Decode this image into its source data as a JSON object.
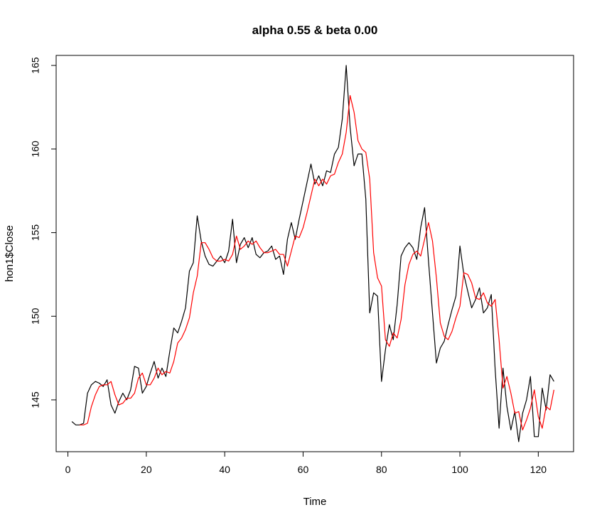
{
  "chart_data": {
    "type": "line",
    "title": "alpha 0.55 & beta 0.00",
    "xlabel": "Time",
    "ylabel": "hon1$Close",
    "xlim": [
      -3,
      129
    ],
    "ylim": [
      141.9,
      165.6
    ],
    "xticks": [
      0,
      20,
      40,
      60,
      80,
      100,
      120
    ],
    "yticks": [
      145,
      150,
      155,
      160,
      165
    ],
    "grid": false,
    "series": [
      {
        "color": "#000000",
        "x": [
          1,
          2,
          3,
          4,
          5,
          6,
          7,
          8,
          9,
          10,
          11,
          12,
          13,
          14,
          15,
          16,
          17,
          18,
          19,
          20,
          21,
          22,
          23,
          24,
          25,
          26,
          27,
          28,
          29,
          30,
          31,
          32,
          33,
          34,
          35,
          36,
          37,
          38,
          39,
          40,
          41,
          42,
          43,
          44,
          45,
          46,
          47,
          48,
          49,
          50,
          51,
          52,
          53,
          54,
          55,
          56,
          57,
          58,
          59,
          60,
          61,
          62,
          63,
          64,
          65,
          66,
          67,
          68,
          69,
          70,
          71,
          72,
          73,
          74,
          75,
          76,
          77,
          78,
          79,
          80,
          81,
          82,
          83,
          84,
          85,
          86,
          87,
          88,
          89,
          90,
          91,
          92,
          93,
          94,
          95,
          96,
          97,
          98,
          99,
          100,
          101,
          102,
          103,
          104,
          105,
          106,
          107,
          108,
          109,
          110,
          111,
          112,
          113,
          114,
          115,
          116,
          117,
          118,
          119,
          120,
          121,
          122,
          123,
          124
        ],
        "values": [
          143.7,
          143.5,
          143.5,
          143.6,
          145.4,
          145.9,
          146.1,
          146.0,
          145.8,
          146.2,
          144.7,
          144.2,
          144.9,
          145.4,
          145.0,
          145.6,
          147.0,
          146.9,
          145.4,
          145.8,
          146.6,
          147.3,
          146.3,
          146.9,
          146.4,
          147.9,
          149.3,
          149.0,
          149.7,
          150.5,
          152.7,
          153.2,
          156.0,
          154.5,
          153.6,
          153.1,
          153.0,
          153.3,
          153.6,
          153.2,
          153.9,
          155.8,
          153.2,
          154.3,
          154.7,
          154.1,
          154.7,
          153.7,
          153.5,
          153.8,
          153.9,
          154.2,
          153.4,
          153.6,
          152.5,
          154.6,
          155.6,
          154.6,
          155.8,
          156.9,
          158.0,
          159.1,
          157.9,
          158.4,
          157.8,
          158.7,
          158.6,
          159.7,
          160.1,
          161.8,
          165.0,
          161.3,
          159.0,
          159.7,
          159.7,
          157.0,
          150.2,
          151.4,
          151.2,
          146.1,
          148.0,
          149.5,
          148.6,
          150.7,
          153.6,
          154.1,
          154.4,
          154.1,
          153.4,
          155.3,
          156.5,
          153.3,
          150.2,
          147.2,
          148.1,
          148.5,
          149.5,
          150.4,
          151.2,
          154.2,
          152.5,
          151.5,
          150.5,
          151.0,
          151.7,
          150.2,
          150.5,
          151.3,
          146.8,
          143.3,
          146.9,
          144.6,
          143.2,
          144.3,
          142.5,
          144.2,
          145.0,
          146.4,
          142.8,
          142.8,
          145.7,
          144.4,
          146.5,
          146.1
        ]
      },
      {
        "color": "#ff0000",
        "x": [
          3,
          4,
          5,
          6,
          7,
          8,
          9,
          10,
          11,
          12,
          13,
          14,
          15,
          16,
          17,
          18,
          19,
          20,
          21,
          22,
          23,
          24,
          25,
          26,
          27,
          28,
          29,
          30,
          31,
          32,
          33,
          34,
          35,
          36,
          37,
          38,
          39,
          40,
          41,
          42,
          43,
          44,
          45,
          46,
          47,
          48,
          49,
          50,
          51,
          52,
          53,
          54,
          55,
          56,
          57,
          58,
          59,
          60,
          61,
          62,
          63,
          64,
          65,
          66,
          67,
          68,
          69,
          70,
          71,
          72,
          73,
          74,
          75,
          76,
          77,
          78,
          79,
          80,
          81,
          82,
          83,
          84,
          85,
          86,
          87,
          88,
          89,
          90,
          91,
          92,
          93,
          94,
          95,
          96,
          97,
          98,
          99,
          100,
          101,
          102,
          103,
          104,
          105,
          106,
          107,
          108,
          109,
          110,
          111,
          112,
          113,
          114,
          115,
          116,
          117,
          118,
          119,
          120,
          121,
          122,
          123,
          124
        ],
        "values": [
          143.5,
          143.5,
          143.6,
          144.6,
          145.3,
          145.8,
          145.9,
          145.9,
          146.1,
          145.3,
          144.7,
          144.8,
          145.1,
          145.1,
          145.4,
          146.3,
          146.6,
          145.9,
          145.9,
          146.3,
          146.9,
          146.5,
          146.7,
          146.6,
          147.3,
          148.4,
          148.7,
          149.2,
          149.9,
          151.4,
          152.4,
          154.4,
          154.4,
          154.0,
          153.5,
          153.3,
          153.3,
          153.4,
          153.3,
          153.7,
          154.8,
          154.0,
          154.2,
          154.5,
          154.3,
          154.5,
          154.1,
          153.8,
          153.8,
          153.9,
          154.0,
          153.7,
          153.7,
          153.0,
          153.9,
          154.8,
          154.7,
          155.3,
          156.2,
          157.2,
          158.2,
          157.8,
          158.2,
          157.9,
          158.4,
          158.5,
          159.2,
          159.7,
          161.0,
          163.2,
          162.2,
          160.5,
          160.0,
          159.8,
          158.2,
          153.8,
          152.3,
          151.8,
          148.6,
          148.2,
          149.0,
          148.7,
          149.8,
          151.9,
          153.1,
          153.7,
          153.9,
          153.6,
          154.6,
          155.6,
          154.5,
          152.3,
          149.6,
          148.8,
          148.6,
          149.1,
          149.9,
          150.6,
          152.6,
          152.5,
          152.0,
          151.1,
          151.0,
          151.4,
          150.8,
          150.6,
          151.0,
          148.6,
          145.7,
          146.4,
          145.4,
          144.2,
          144.3,
          143.2,
          143.8,
          144.5,
          145.6,
          144.0,
          143.3,
          144.6,
          144.4,
          145.6
        ]
      }
    ]
  }
}
